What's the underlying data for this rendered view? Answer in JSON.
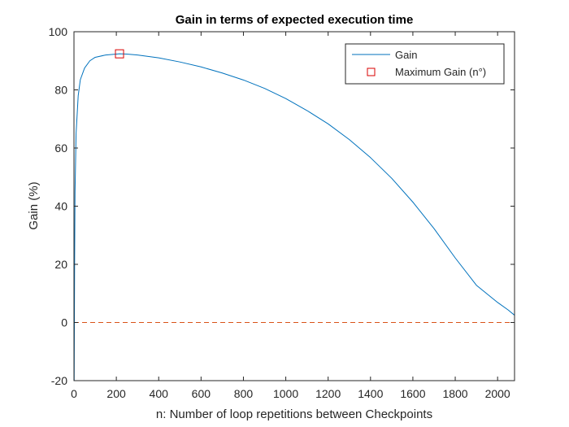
{
  "chart_data": {
    "type": "line",
    "title": "Gain in terms of expected execution time",
    "xlabel": "n: Number of loop repetitions between Checkpoints",
    "ylabel": "Gain (%)",
    "xlim": [
      0,
      2080
    ],
    "ylim": [
      -20,
      100
    ],
    "xticks": [
      0,
      200,
      400,
      600,
      800,
      1000,
      1200,
      1400,
      1600,
      1800,
      2000
    ],
    "yticks": [
      -20,
      0,
      20,
      40,
      60,
      80,
      100
    ],
    "grid": false,
    "legend_position": "top-right",
    "series": [
      {
        "name": "Gain",
        "kind": "line",
        "color": "#0072BD",
        "x": [
          1,
          3,
          5,
          10,
          20,
          30,
          50,
          75,
          100,
          150,
          200,
          215,
          250,
          300,
          400,
          500,
          600,
          700,
          800,
          900,
          1000,
          1100,
          1200,
          1300,
          1400,
          1500,
          1600,
          1700,
          1800,
          1900,
          2000,
          2050,
          2080
        ],
        "y": [
          -20,
          20,
          45,
          65,
          78,
          83.5,
          87.5,
          90,
          91.2,
          92,
          92.3,
          92.4,
          92.3,
          92,
          91,
          89.6,
          87.9,
          85.8,
          83.4,
          80.5,
          77,
          72.9,
          68.3,
          62.9,
          56.7,
          49.6,
          41.4,
          32.3,
          22.2,
          12.8,
          6.9,
          4.3,
          2.5
        ]
      },
      {
        "name": "Maximum Gain (n°)",
        "kind": "marker",
        "marker": "square",
        "color": "#D90000",
        "x": [
          215
        ],
        "y": [
          92.4
        ]
      },
      {
        "kind": "reference-line",
        "style": "dashed",
        "color": "#D95319",
        "y": 0
      }
    ]
  }
}
